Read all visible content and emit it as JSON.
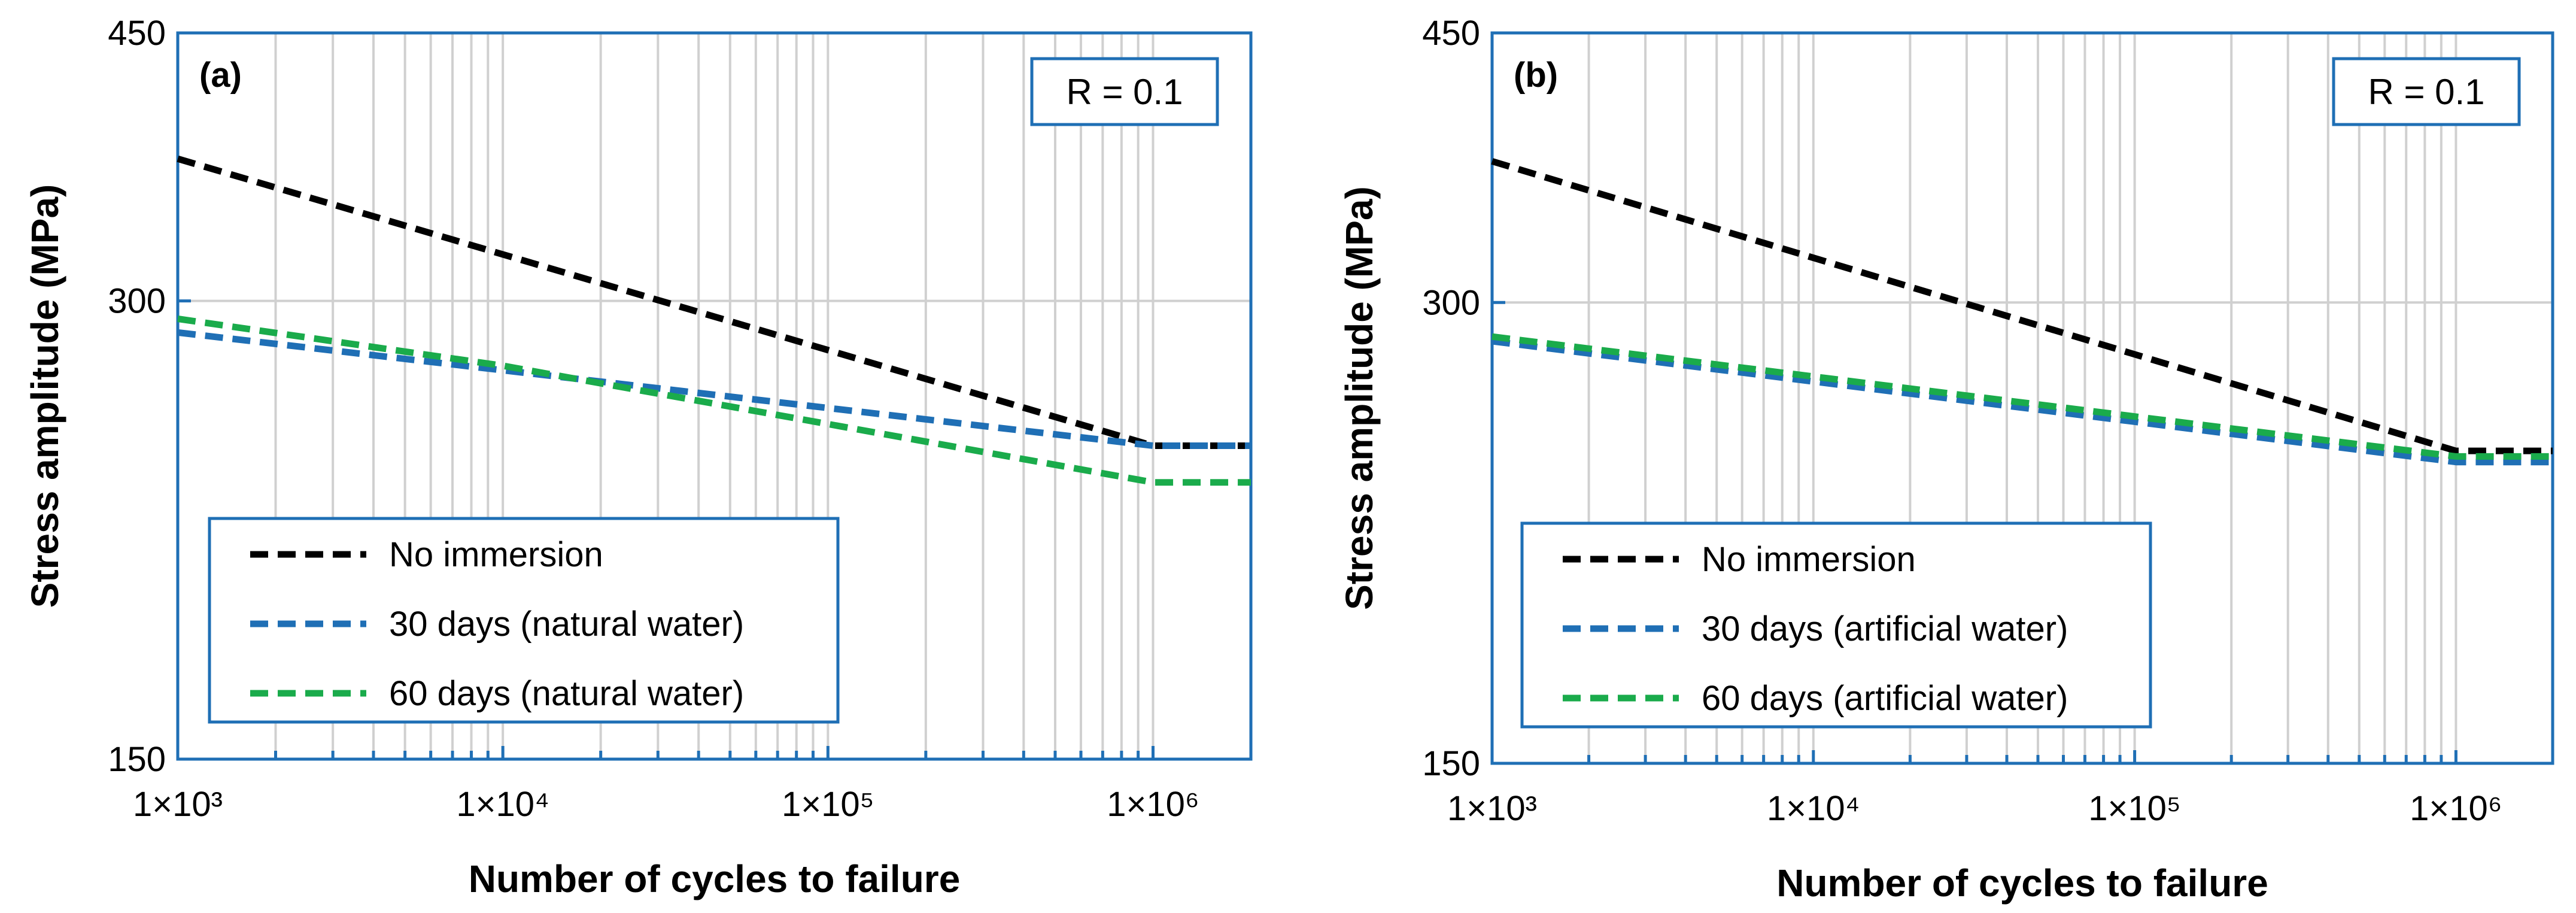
{
  "chart_data": [
    {
      "type": "line",
      "panel_label": "(a)",
      "annotation": "R = 0.1",
      "xlabel": "Number of cycles to failure",
      "ylabel": "Stress amplitude (MPa)",
      "x_scale": "log",
      "y_scale": "log",
      "xlim": [
        1000,
        2000000
      ],
      "ylim": [
        150,
        450
      ],
      "x_ticks": [
        1000,
        10000,
        100000,
        1000000
      ],
      "x_tick_labels": [
        "1×10³",
        "1×10⁴",
        "1×10⁵",
        "1×10⁶"
      ],
      "y_ticks": [
        150,
        300,
        450
      ],
      "y_tick_labels": [
        "150",
        "300",
        "450"
      ],
      "legend_position": "bottom-left",
      "series": [
        {
          "name": "No immersion",
          "color": "#000000",
          "x": [
            1000,
            1000000,
            2000000
          ],
          "y": [
            372,
            241,
            241
          ]
        },
        {
          "name": "30 days (natural water)",
          "color": "#1f6fb5",
          "x": [
            1000,
            1000000,
            2000000
          ],
          "y": [
            286,
            241,
            241
          ]
        },
        {
          "name": "60 days (natural water)",
          "color": "#1aab4b",
          "x": [
            1000,
            10000,
            1000000,
            2000000
          ],
          "y": [
            292,
            272,
            228,
            228
          ]
        }
      ]
    },
    {
      "type": "line",
      "panel_label": "(b)",
      "annotation": "R = 0.1",
      "xlabel": "Number of cycles to failure",
      "ylabel": "Stress amplitude (MPa)",
      "x_scale": "log",
      "y_scale": "log",
      "xlim": [
        1000,
        2000000
      ],
      "ylim": [
        150,
        450
      ],
      "x_ticks": [
        1000,
        10000,
        100000,
        1000000
      ],
      "x_tick_labels": [
        "1×10³",
        "1×10⁴",
        "1×10⁵",
        "1×10⁶"
      ],
      "y_ticks": [
        150,
        300,
        450
      ],
      "y_tick_labels": [
        "150",
        "300",
        "450"
      ],
      "legend_position": "bottom-left",
      "series": [
        {
          "name": "No immersion",
          "color": "#000000",
          "x": [
            1000,
            1000000,
            2000000
          ],
          "y": [
            371,
            240,
            240
          ]
        },
        {
          "name": "30 days (artificial water)",
          "color": "#1f6fb5",
          "x": [
            1000,
            1000000,
            2000000
          ],
          "y": [
            283,
            236,
            236
          ]
        },
        {
          "name": "60 days (artificial water)",
          "color": "#1aab4b",
          "x": [
            1000,
            1000000,
            2000000
          ],
          "y": [
            285,
            238,
            238
          ]
        }
      ]
    }
  ]
}
